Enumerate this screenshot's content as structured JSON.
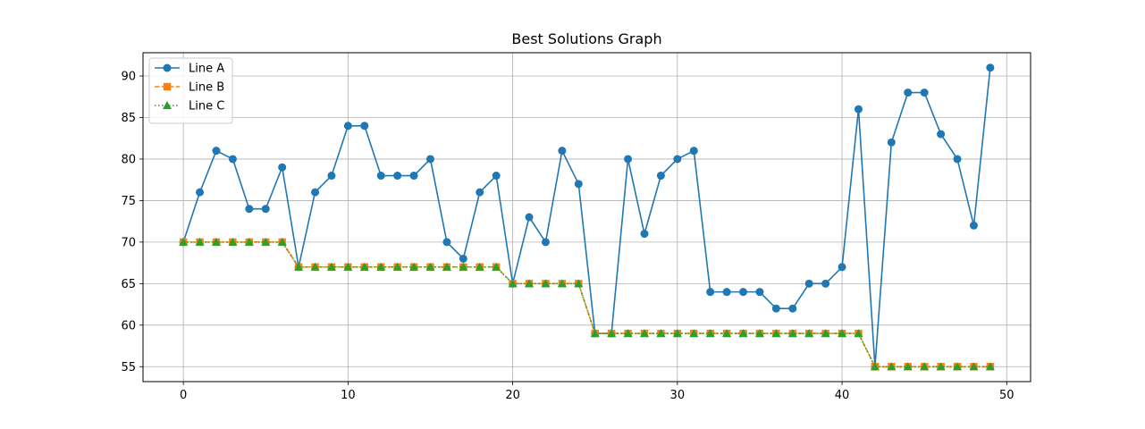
{
  "chart_data": {
    "type": "line",
    "title": "Best Solutions Graph",
    "xlabel": "",
    "ylabel": "",
    "xlim": [
      -2.45,
      51.45
    ],
    "ylim": [
      53.2,
      92.8
    ],
    "xticks": [
      0,
      10,
      20,
      30,
      40,
      50
    ],
    "yticks": [
      55,
      60,
      65,
      70,
      75,
      80,
      85,
      90
    ],
    "grid": true,
    "legend_position": "top-left",
    "x": [
      0,
      1,
      2,
      3,
      4,
      5,
      6,
      7,
      8,
      9,
      10,
      11,
      12,
      13,
      14,
      15,
      16,
      17,
      18,
      19,
      20,
      21,
      22,
      23,
      24,
      25,
      26,
      27,
      28,
      29,
      30,
      31,
      32,
      33,
      34,
      35,
      36,
      37,
      38,
      39,
      40,
      41,
      42,
      43,
      44,
      45,
      46,
      47,
      48,
      49
    ],
    "series": [
      {
        "name": "Line A",
        "color": "#1f77b4",
        "linestyle": "solid",
        "marker": "circle",
        "values": [
          70,
          76,
          81,
          80,
          74,
          74,
          79,
          67,
          76,
          78,
          84,
          84,
          78,
          78,
          78,
          80,
          70,
          68,
          76,
          78,
          65,
          73,
          70,
          81,
          77,
          59,
          59,
          80,
          71,
          78,
          80,
          81,
          64,
          64,
          64,
          64,
          62,
          62,
          65,
          65,
          67,
          86,
          55,
          82,
          88,
          88,
          83,
          80,
          72,
          91
        ]
      },
      {
        "name": "Line B",
        "color": "#ff7f0e",
        "linestyle": "dashed",
        "marker": "square",
        "values": [
          70,
          70,
          70,
          70,
          70,
          70,
          70,
          67,
          67,
          67,
          67,
          67,
          67,
          67,
          67,
          67,
          67,
          67,
          67,
          67,
          65,
          65,
          65,
          65,
          65,
          59,
          59,
          59,
          59,
          59,
          59,
          59,
          59,
          59,
          59,
          59,
          59,
          59,
          59,
          59,
          59,
          59,
          55,
          55,
          55,
          55,
          55,
          55,
          55,
          55
        ]
      },
      {
        "name": "Line C",
        "color": "#2ca02c",
        "linestyle": "dotted",
        "marker": "triangle",
        "values": [
          70,
          70,
          70,
          70,
          70,
          70,
          70,
          67,
          67,
          67,
          67,
          67,
          67,
          67,
          67,
          67,
          67,
          67,
          67,
          67,
          65,
          65,
          65,
          65,
          65,
          59,
          59,
          59,
          59,
          59,
          59,
          59,
          59,
          59,
          59,
          59,
          59,
          59,
          59,
          59,
          59,
          59,
          55,
          55,
          55,
          55,
          55,
          55,
          55,
          55
        ]
      }
    ]
  }
}
